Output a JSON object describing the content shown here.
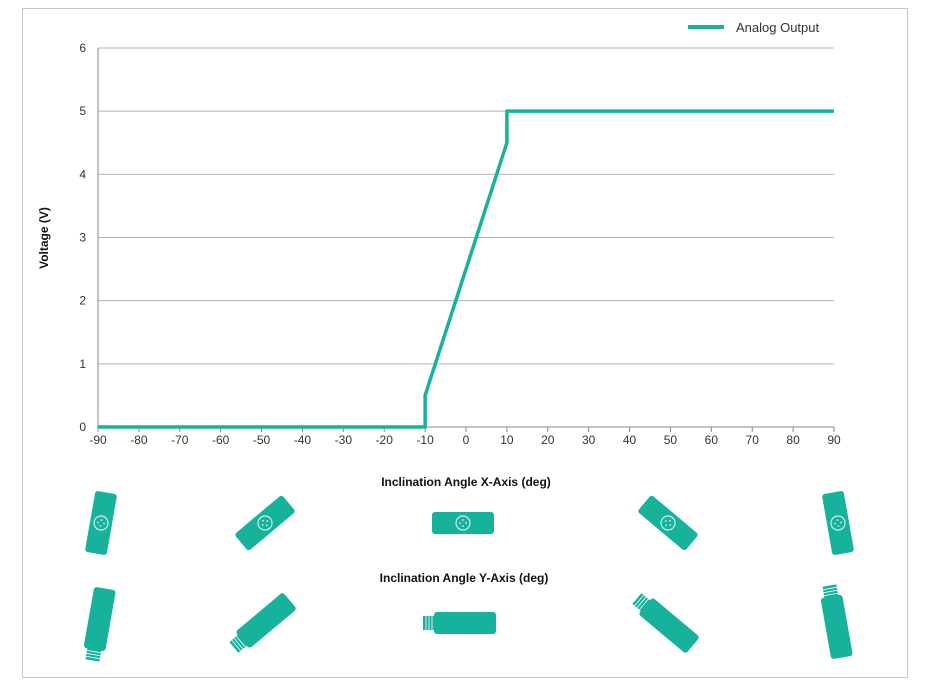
{
  "chart_data": {
    "type": "line",
    "title": "",
    "xlabel": "Inclination Angle X-Axis (deg)",
    "xlabel2": "Inclination Angle Y-Axis (deg)",
    "ylabel": "Voltage (V)",
    "xlim": [
      -90,
      90
    ],
    "ylim": [
      0,
      6
    ],
    "xticks": [
      -90,
      -80,
      -70,
      -60,
      -50,
      -40,
      -30,
      -20,
      -10,
      0,
      10,
      20,
      30,
      40,
      50,
      60,
      70,
      80,
      90
    ],
    "yticks": [
      0,
      1,
      2,
      3,
      4,
      5,
      6
    ],
    "grid": "horizontal",
    "legend_position": "top-right",
    "series": [
      {
        "name": "Analog Output",
        "color": "#16b29c",
        "x": [
          -90,
          -10,
          -10,
          10,
          10,
          90
        ],
        "y": [
          0,
          0,
          0.5,
          4.5,
          5,
          5
        ]
      }
    ],
    "sensor_orientations_deg": [
      -80,
      -40,
      0,
      40,
      80
    ],
    "sensor_icon_color": "#16b29c"
  }
}
